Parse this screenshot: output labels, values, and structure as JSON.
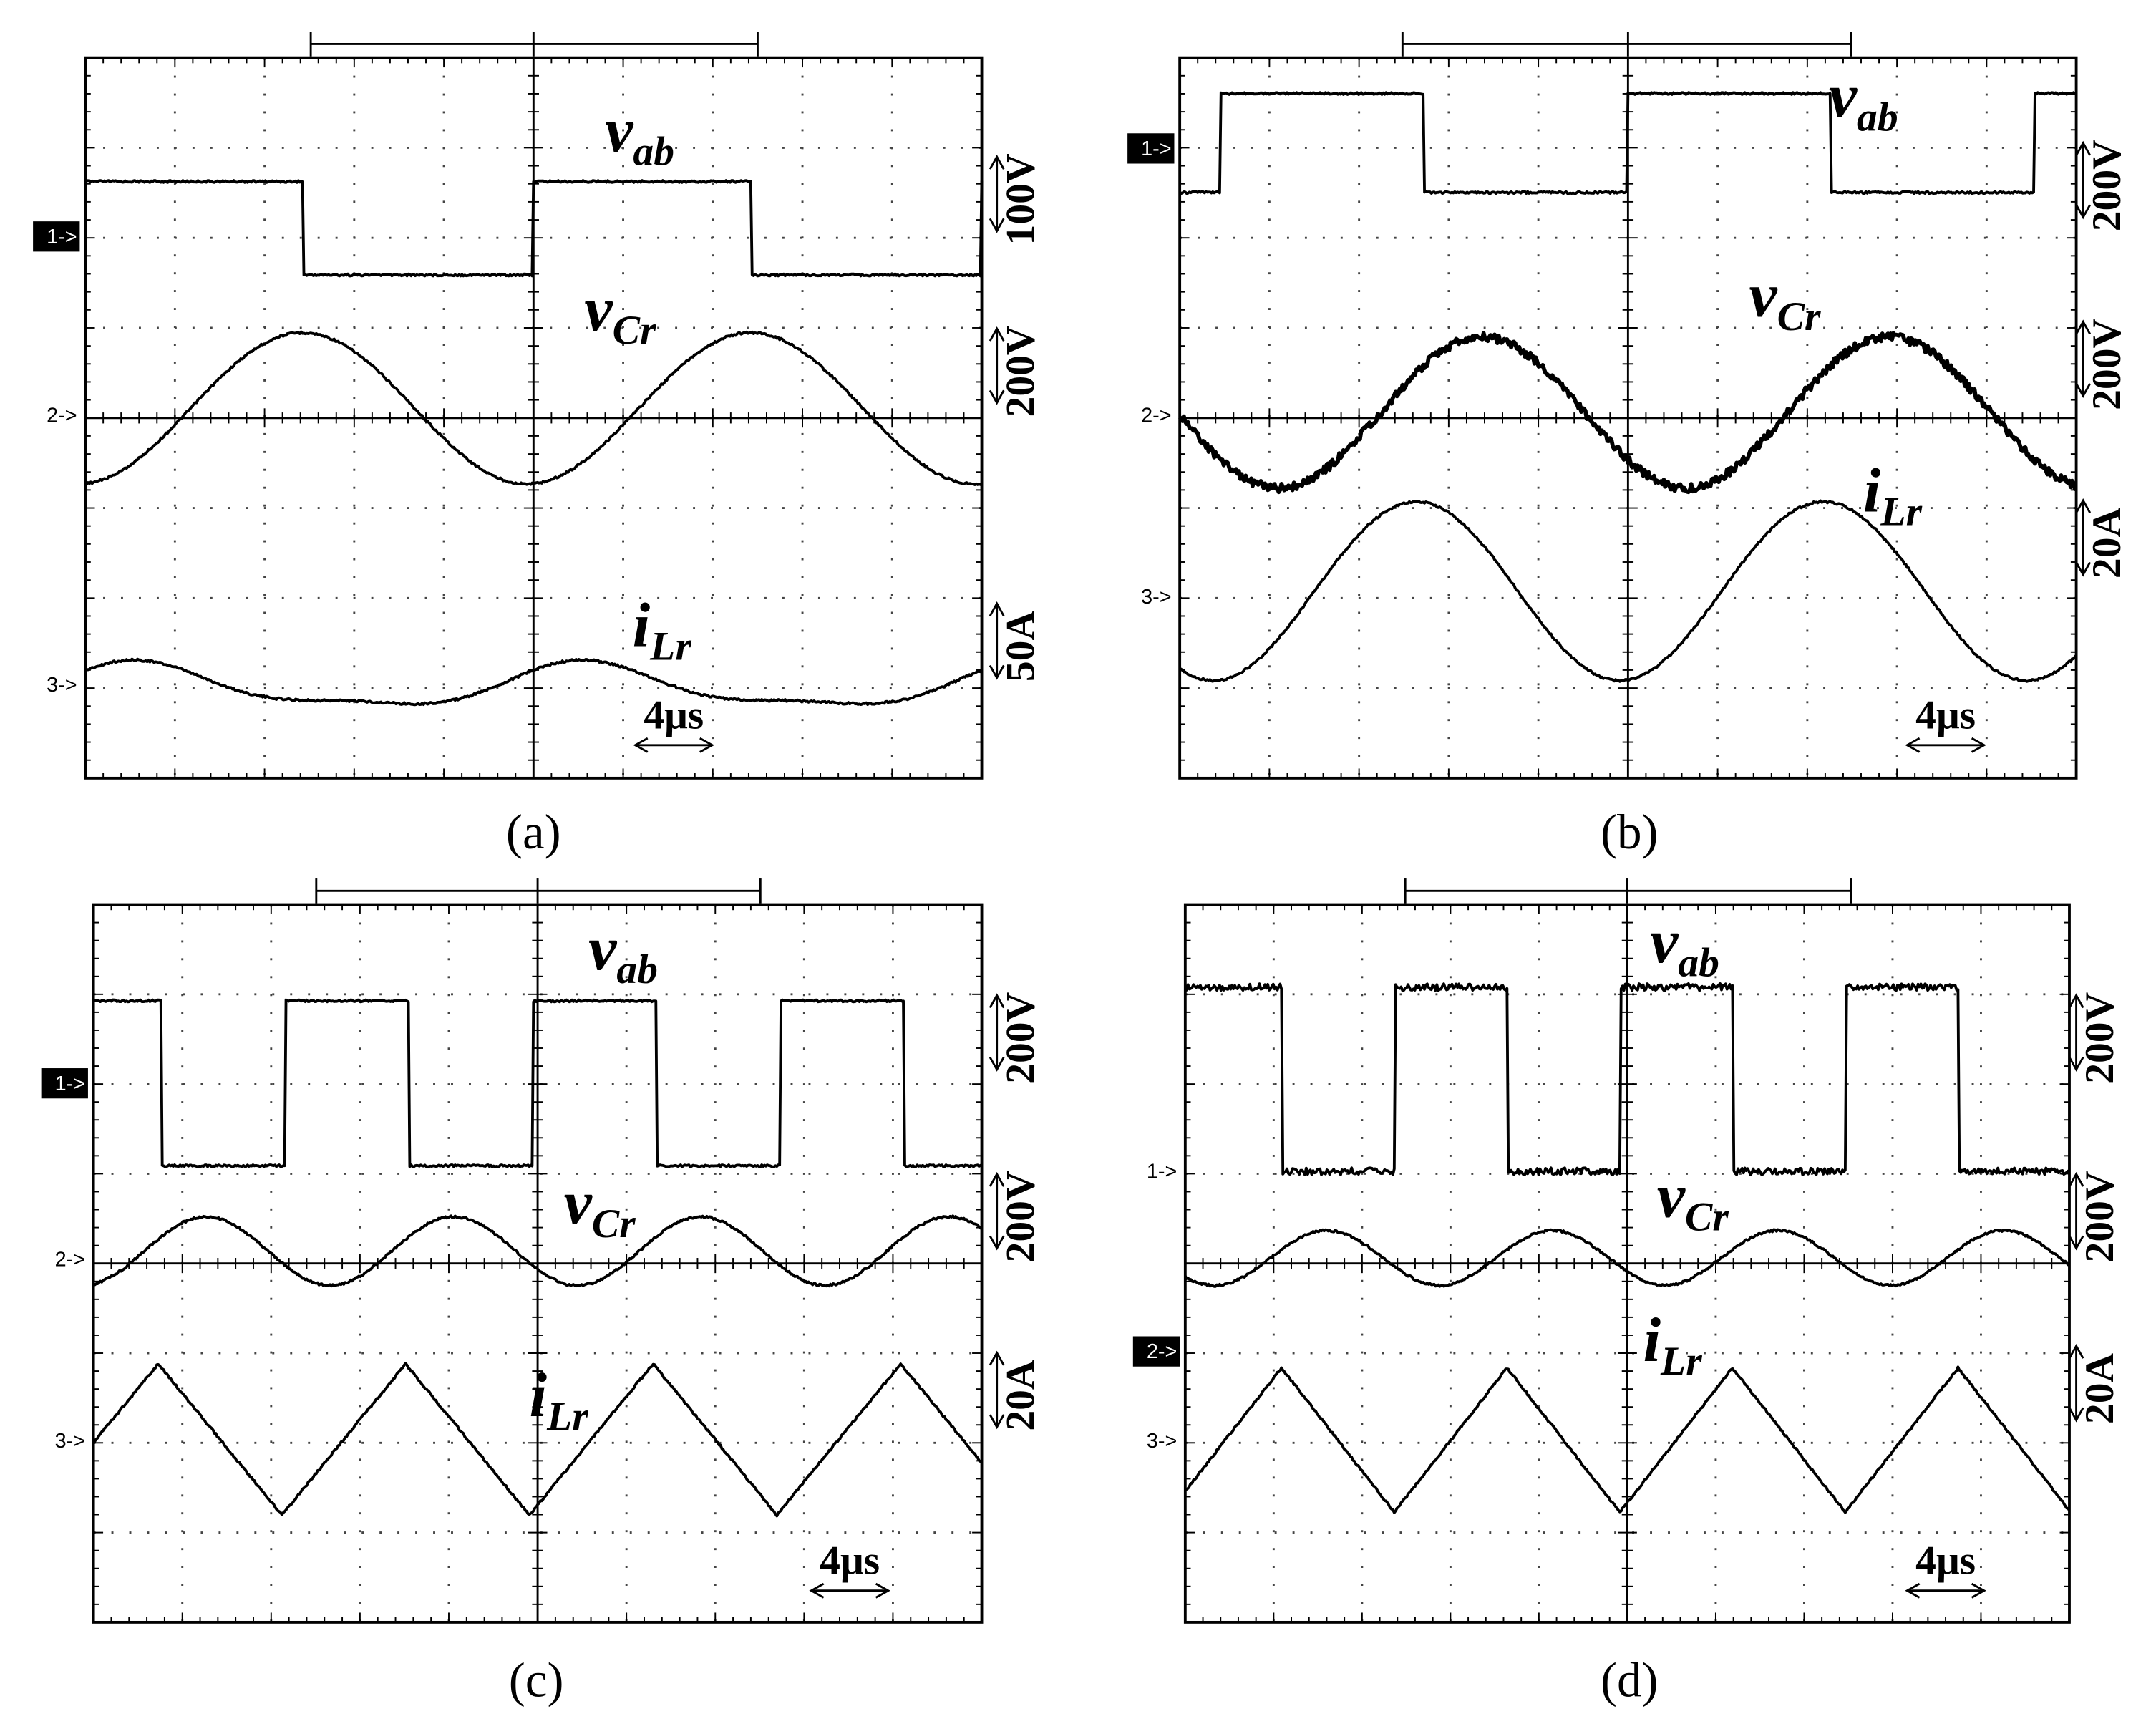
{
  "panels": [
    {
      "caption": "(a)",
      "labels": [
        {
          "main": "v",
          "sub": "ab"
        },
        {
          "main": "v",
          "sub": "Cr"
        },
        {
          "main": "i",
          "sub": "Lr"
        }
      ],
      "scales": [
        "100V",
        "200V",
        "50A"
      ],
      "markers": [
        "1->",
        "2->",
        "3->"
      ],
      "time": "4μs"
    },
    {
      "caption": "(b)",
      "labels": [
        {
          "main": "v",
          "sub": "ab"
        },
        {
          "main": "v",
          "sub": "Cr"
        },
        {
          "main": "i",
          "sub": "Lr"
        }
      ],
      "scales": [
        "200V",
        "200V",
        "20A"
      ],
      "markers": [
        "1->",
        "2->",
        "3->"
      ],
      "time": "4μs"
    },
    {
      "caption": "(c)",
      "labels": [
        {
          "main": "v",
          "sub": "ab"
        },
        {
          "main": "v",
          "sub": "Cr"
        },
        {
          "main": "i",
          "sub": "Lr"
        }
      ],
      "scales": [
        "200V",
        "200V",
        "20A"
      ],
      "markers": [
        "1->",
        "2->",
        "3->"
      ],
      "time": "4μs"
    },
    {
      "caption": "(d)",
      "labels": [
        {
          "main": "v",
          "sub": "ab"
        },
        {
          "main": "v",
          "sub": "Cr"
        },
        {
          "main": "i",
          "sub": "Lr"
        }
      ],
      "scales": [
        "200V",
        "200V",
        "20A"
      ],
      "markers": [
        "1->",
        "2->",
        "3->"
      ],
      "time": "4μs"
    }
  ]
}
